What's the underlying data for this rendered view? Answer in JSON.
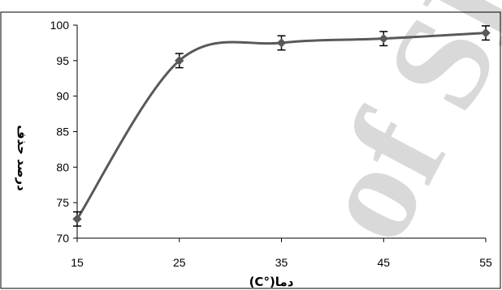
{
  "chart_data": {
    "type": "line",
    "title": "",
    "xlabel": "دما(°C)",
    "ylabel": "درصد حذف",
    "x": [
      15,
      25,
      35,
      45,
      55
    ],
    "series": [
      {
        "values": [
          72.7,
          95.0,
          97.5,
          98.1,
          98.9
        ],
        "errors": [
          1.0,
          1.0,
          1.0,
          1.0,
          1.0
        ]
      }
    ],
    "xlim": [
      15,
      55
    ],
    "ylim": [
      70,
      100
    ],
    "xticks": [
      "15",
      "25",
      "35",
      "45",
      "55"
    ],
    "yticks": [
      "70",
      "75",
      "80",
      "85",
      "90",
      "95",
      "100"
    ],
    "grid": false,
    "legend": "none",
    "line_color": "#595959",
    "marker": "diamond",
    "marker_color": "#595959"
  },
  "watermark": {
    "text": "of SID",
    "color": "#d9d9d9"
  }
}
